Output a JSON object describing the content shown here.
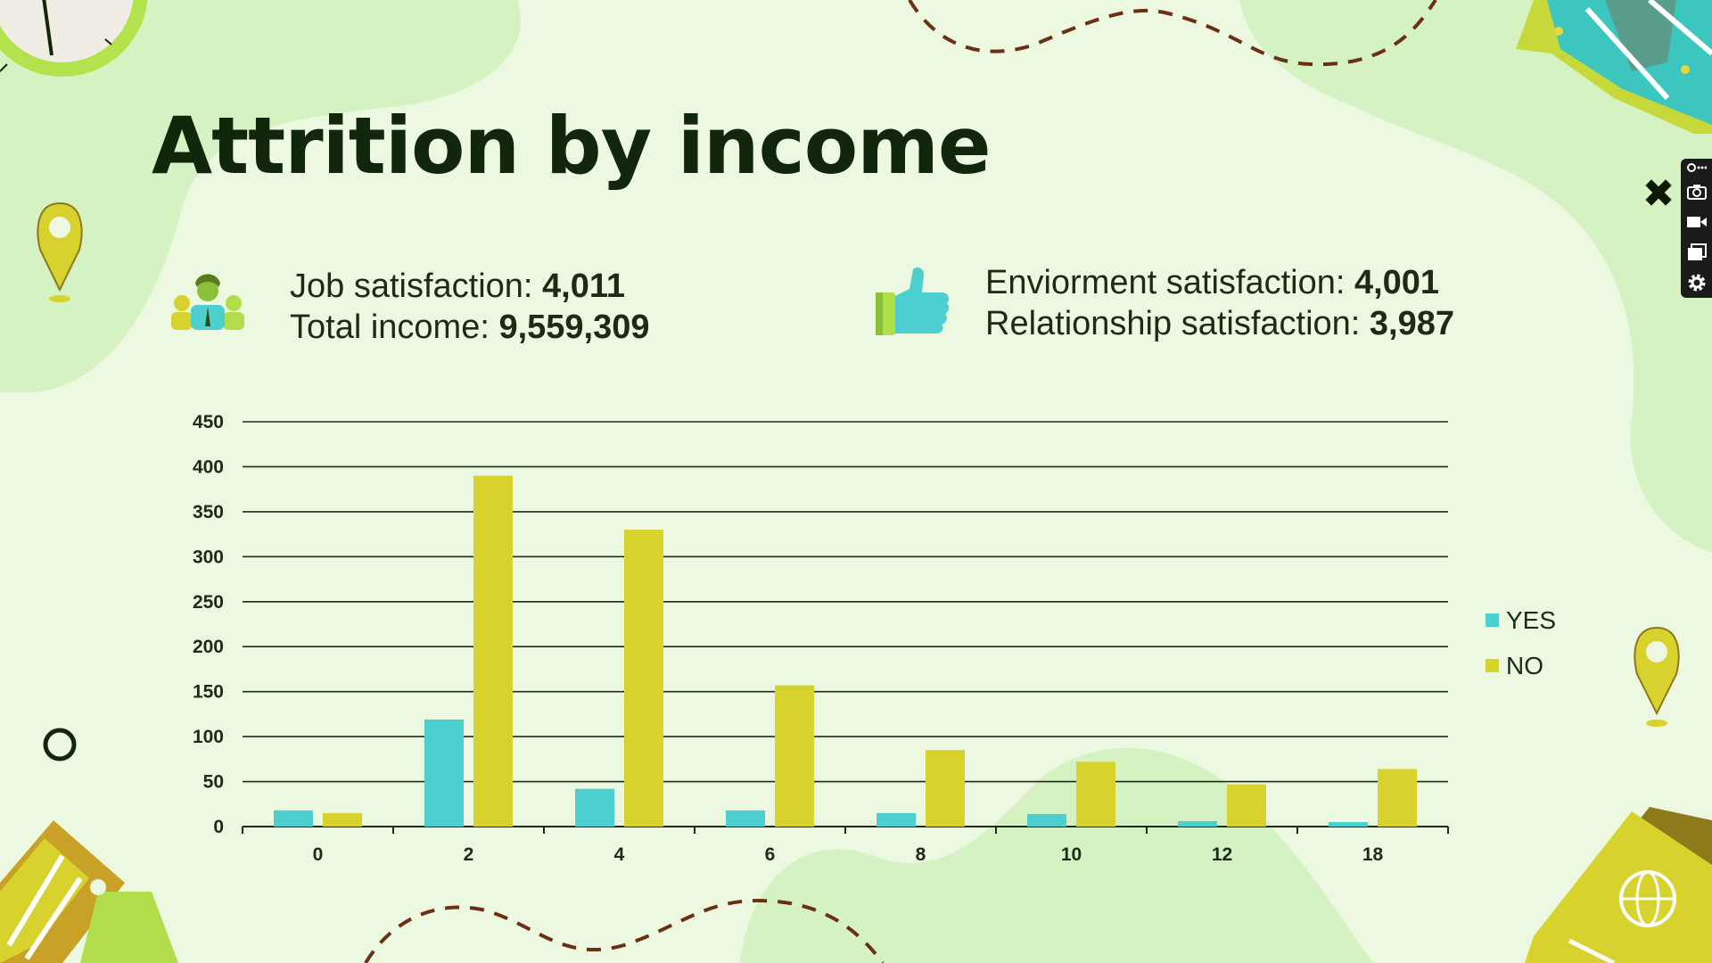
{
  "title": "Attrition by income",
  "stats": {
    "left": [
      {
        "label": "Job satisfaction: ",
        "value": "4,011"
      },
      {
        "label": "Total income: ",
        "value": "9,559,309"
      }
    ],
    "right": [
      {
        "label": "Enviorment satisfaction: ",
        "value": "4,001"
      },
      {
        "label": "Relationship satisfaction: ",
        "value": "3,987"
      }
    ]
  },
  "colors": {
    "yes": "#4ecfcf",
    "no": "#d8d22e",
    "background": "#ecf8e0",
    "blob": "#d5f2c3",
    "title": "#12260c"
  },
  "icons": {
    "people": "people-group-icon",
    "thumb": "thumbs-up-icon",
    "close": "close-icon"
  },
  "toolbar": {
    "close_symbol": "✖",
    "buttons": [
      "link-icon",
      "camera-icon",
      "video-icon",
      "window-icon",
      "gear-icon"
    ]
  },
  "chart_data": {
    "type": "bar",
    "categories": [
      "0",
      "2",
      "4",
      "6",
      "8",
      "10",
      "12",
      "18"
    ],
    "series": [
      {
        "name": "YES",
        "values": [
          18,
          119,
          42,
          18,
          15,
          14,
          6,
          5
        ]
      },
      {
        "name": "NO",
        "values": [
          15,
          390,
          330,
          157,
          85,
          72,
          47,
          64
        ]
      }
    ],
    "ylim": [
      0,
      450
    ],
    "yticks": [
      0,
      50,
      100,
      150,
      200,
      250,
      300,
      350,
      400,
      450
    ],
    "grid": true,
    "legend_position": "right"
  }
}
